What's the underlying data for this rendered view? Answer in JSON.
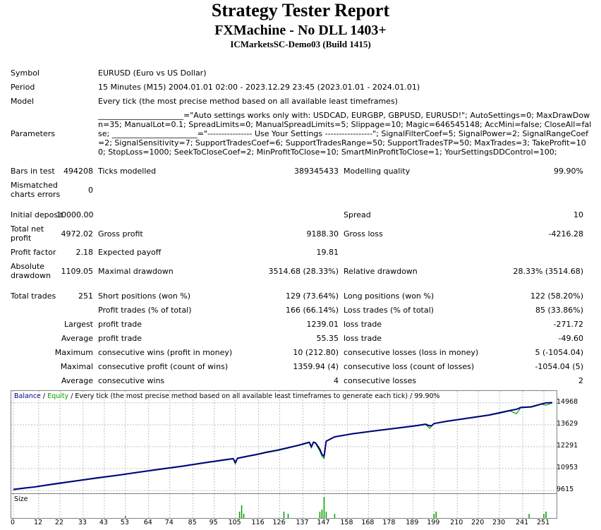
{
  "header": {
    "title": "Strategy Tester Report",
    "subtitle": "FXMachine - No DLL 1403+",
    "build": "ICMarketsSC-Demo03 (Build 1415)"
  },
  "info": {
    "symbol_label": "Symbol",
    "symbol_value": "EURUSD (Euro vs US Dollar)",
    "period_label": "Period",
    "period_value": "15 Minutes (M15) 2004.01.01 02:00 - 2023.12.29 23:45 (2023.01.01 - 2024.01.01)",
    "model_label": "Model",
    "model_value": "Every tick (the most precise method based on all available least timeframes)",
    "params_label": "Parameters",
    "params_value": "______________________=\"Auto settings works only with: USDCAD, EURGBP, GBPUSD, EURUSD!\"; AutoSettings=0; MaxDrawDown=35; ManualLot=0.1; SpreadLimits=0; ManualSpreadLimits=5; Slippage=10; Magic=646545148; AccMini=false; CloseAll=false; ______________________=\"---------------- Use Your Settings -----------------\"; SignalFilterCoef=5; SignalPower=2; SignalRangeCoef=2; SignalSensitivity=7; SupportTradesCoef=6; SupportTradesRange=50; SupportTradesTP=50; MaxTrades=3; TakeProfit=100; StopLoss=1000; SeekToCloseCoef=2; MinProfitToClose=10; SmartMinProfitToClose=1; YourSettingsDDControl=100;"
  },
  "stats": {
    "bars_label": "Bars in test",
    "bars_value": "494208",
    "ticks_label": "Ticks modelled",
    "ticks_value": "389345433",
    "quality_label": "Modelling quality",
    "quality_value": "99.90%",
    "mismatch_label_1": "Mismatched",
    "mismatch_label_2": "charts errors",
    "mismatch_value": "0",
    "deposit_label": "Initial deposit",
    "deposit_value": "10000.00",
    "spread_label": "Spread",
    "spread_value": "10",
    "netprofit_label_1": "Total net",
    "netprofit_label_2": "profit",
    "netprofit_value": "4972.02",
    "grossprofit_label": "Gross profit",
    "grossprofit_value": "9188.30",
    "grossloss_label": "Gross loss",
    "grossloss_value": "-4216.28",
    "pf_label": "Profit factor",
    "pf_value": "2.18",
    "payoff_label": "Expected payoff",
    "payoff_value": "19.81",
    "absdd_label_1": "Absolute",
    "absdd_label_2": "drawdown",
    "absdd_value": "1109.05",
    "maxdd_label": "Maximal drawdown",
    "maxdd_value": "3514.68 (28.33%)",
    "reldd_label": "Relative drawdown",
    "reldd_value": "28.33% (3514.68)",
    "trades_label": "Total trades",
    "trades_value": "251",
    "short_label": "Short positions (won %)",
    "short_value": "129 (73.64%)",
    "long_label": "Long positions (won %)",
    "long_value": "122 (58.20%)",
    "profit_trades_label": "Profit trades (% of total)",
    "profit_trades_value": "166 (66.14%)",
    "loss_trades_label": "Loss trades (% of total)",
    "loss_trades_value": "85 (33.86%)",
    "largest_label": "Largest",
    "largest_pt_label": "profit trade",
    "largest_pt_value": "1239.01",
    "largest_lt_label": "loss trade",
    "largest_lt_value": "-271.72",
    "average_label": "Average",
    "average_pt_label": "profit trade",
    "average_pt_value": "55.35",
    "average_lt_label": "loss trade",
    "average_lt_value": "-49.60",
    "maximum_label": "Maximum",
    "max_cw_label": "consecutive wins (profit in money)",
    "max_cw_value": "10 (212.80)",
    "max_cl_label": "consecutive losses (loss in money)",
    "max_cl_value": "5 (-1054.04)",
    "maximal_label": "Maximal",
    "maximal_cp_label": "consecutive profit (count of wins)",
    "maximal_cp_value": "1359.94 (4)",
    "maximal_cl_label": "consecutive loss (count of losses)",
    "maximal_cl_value": "-1054.04 (5)",
    "avg2_label": "Average",
    "avg_cw_label": "consecutive wins",
    "avg_cw_value": "4",
    "avg_cl_label": "consecutive losses",
    "avg_cl_value": "2"
  },
  "chart_legend": {
    "balance": "Balance",
    "sep": " / ",
    "equity": "Equity",
    "rest": " / Every tick (the most precise method based on all available least timeframes to generate each tick) / 99.90%",
    "size_label": "Size"
  },
  "colors": {
    "balance": "#000080",
    "equity": "#00a000",
    "grid": "#c0c0c0",
    "volume": "#00a000"
  },
  "chart_data": {
    "type": "line",
    "x_ticks": [
      "0",
      "12",
      "22",
      "33",
      "43",
      "53",
      "64",
      "74",
      "85",
      "95",
      "105",
      "116",
      "126",
      "137",
      "147",
      "158",
      "168",
      "178",
      "189",
      "199",
      "210",
      "220",
      "230",
      "241",
      "251"
    ],
    "y_ticks": [
      "14968",
      "13629",
      "12291",
      "10953",
      "9615"
    ],
    "ylim": [
      9615,
      15000
    ],
    "xlim": [
      0,
      255
    ],
    "grid": true,
    "series": [
      {
        "name": "Balance",
        "x": [
          0,
          5,
          10,
          20,
          30,
          40,
          50,
          60,
          70,
          80,
          90,
          100,
          104,
          105,
          106,
          110,
          115,
          120,
          125,
          130,
          135,
          140,
          141,
          142,
          143,
          145,
          146,
          147,
          148,
          152,
          160,
          170,
          180,
          190,
          195,
          197,
          198,
          199,
          205,
          215,
          225,
          230,
          235,
          238,
          240,
          245,
          250,
          252,
          255
        ],
        "values": [
          9680,
          9760,
          9830,
          10030,
          10210,
          10390,
          10560,
          10750,
          10930,
          11100,
          11300,
          11490,
          11560,
          11320,
          11580,
          11690,
          11810,
          11960,
          12080,
          12230,
          12380,
          12560,
          12280,
          12560,
          12520,
          12130,
          11820,
          11700,
          12620,
          12890,
          13070,
          13240,
          13400,
          13560,
          13660,
          13560,
          13580,
          13700,
          13840,
          14030,
          14220,
          14360,
          14500,
          14570,
          14680,
          14720,
          14900,
          14960,
          14980
        ]
      },
      {
        "name": "Equity",
        "x": [
          0,
          5,
          10,
          20,
          30,
          40,
          50,
          60,
          70,
          80,
          90,
          100,
          104,
          105,
          106,
          110,
          115,
          120,
          125,
          130,
          135,
          140,
          141,
          142,
          143,
          145,
          146,
          147,
          148,
          152,
          160,
          170,
          180,
          190,
          195,
          197,
          198,
          199,
          205,
          215,
          225,
          230,
          235,
          238,
          240,
          245,
          250,
          252,
          255
        ],
        "values": [
          9650,
          9740,
          9820,
          10000,
          10190,
          10360,
          10540,
          10730,
          10900,
          11080,
          11280,
          11460,
          11540,
          11220,
          11560,
          11660,
          11790,
          11930,
          12050,
          12200,
          12360,
          12530,
          12200,
          12600,
          12480,
          12020,
          11710,
          11560,
          12600,
          12870,
          13050,
          13220,
          13380,
          13540,
          13640,
          13400,
          13560,
          13690,
          13820,
          14010,
          14200,
          14330,
          14470,
          14300,
          14660,
          14700,
          14880,
          14820,
          14970
        ]
      },
      {
        "name": "Size",
        "x": [
          53,
          107,
          108,
          109,
          128,
          130,
          145,
          146,
          147,
          148,
          152,
          199,
          200,
          244,
          251,
          252
        ],
        "values": [
          0.1,
          0.3,
          0.6,
          0.2,
          0.3,
          0.2,
          0.3,
          0.4,
          1.0,
          0.3,
          0.2,
          0.2,
          0.3,
          0.2,
          0.2,
          0.3
        ]
      }
    ]
  }
}
